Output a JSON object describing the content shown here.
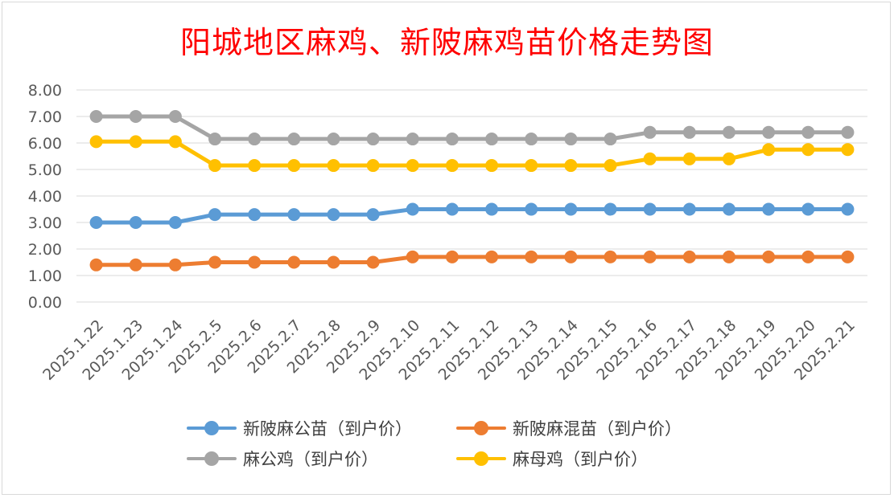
{
  "chart_data": {
    "type": "line",
    "title": "阳城地区麻鸡、新陂麻鸡苗价格走势图",
    "categories": [
      "2025.1.22",
      "2025.1.23",
      "2025.1.24",
      "2025.2.5",
      "2025.2.6",
      "2025.2.7",
      "2025.2.8",
      "2025.2.9",
      "2025.2.10",
      "2025.2.11",
      "2025.2.12",
      "2025.2.13",
      "2025.2.14",
      "2025.2.15",
      "2025.2.16",
      "2025.2.17",
      "2025.2.18",
      "2025.2.19",
      "2025.2.20",
      "2025.2.21"
    ],
    "y_ticks": [
      "0.00",
      "1.00",
      "2.00",
      "3.00",
      "4.00",
      "5.00",
      "6.00",
      "7.00",
      "8.00"
    ],
    "ylim": [
      0,
      8
    ],
    "grid": true,
    "legend_position": "bottom",
    "series": [
      {
        "name": "新陂麻公苗（到户价）",
        "color": "#5b9bd5",
        "values": [
          3.0,
          3.0,
          3.0,
          3.3,
          3.3,
          3.3,
          3.3,
          3.3,
          3.5,
          3.5,
          3.5,
          3.5,
          3.5,
          3.5,
          3.5,
          3.5,
          3.5,
          3.5,
          3.5,
          3.5
        ]
      },
      {
        "name": "新陂麻混苗（到户价）",
        "color": "#ed7d31",
        "values": [
          1.4,
          1.4,
          1.4,
          1.5,
          1.5,
          1.5,
          1.5,
          1.5,
          1.7,
          1.7,
          1.7,
          1.7,
          1.7,
          1.7,
          1.7,
          1.7,
          1.7,
          1.7,
          1.7,
          1.7
        ]
      },
      {
        "name": "麻公鸡（到户价）",
        "color": "#a5a5a5",
        "values": [
          7.0,
          7.0,
          7.0,
          6.15,
          6.15,
          6.15,
          6.15,
          6.15,
          6.15,
          6.15,
          6.15,
          6.15,
          6.15,
          6.15,
          6.4,
          6.4,
          6.4,
          6.4,
          6.4,
          6.4
        ]
      },
      {
        "name": "麻母鸡（到户价）",
        "color": "#ffc000",
        "values": [
          6.05,
          6.05,
          6.05,
          5.15,
          5.15,
          5.15,
          5.15,
          5.15,
          5.15,
          5.15,
          5.15,
          5.15,
          5.15,
          5.15,
          5.4,
          5.4,
          5.4,
          5.75,
          5.75,
          5.75
        ]
      }
    ]
  }
}
